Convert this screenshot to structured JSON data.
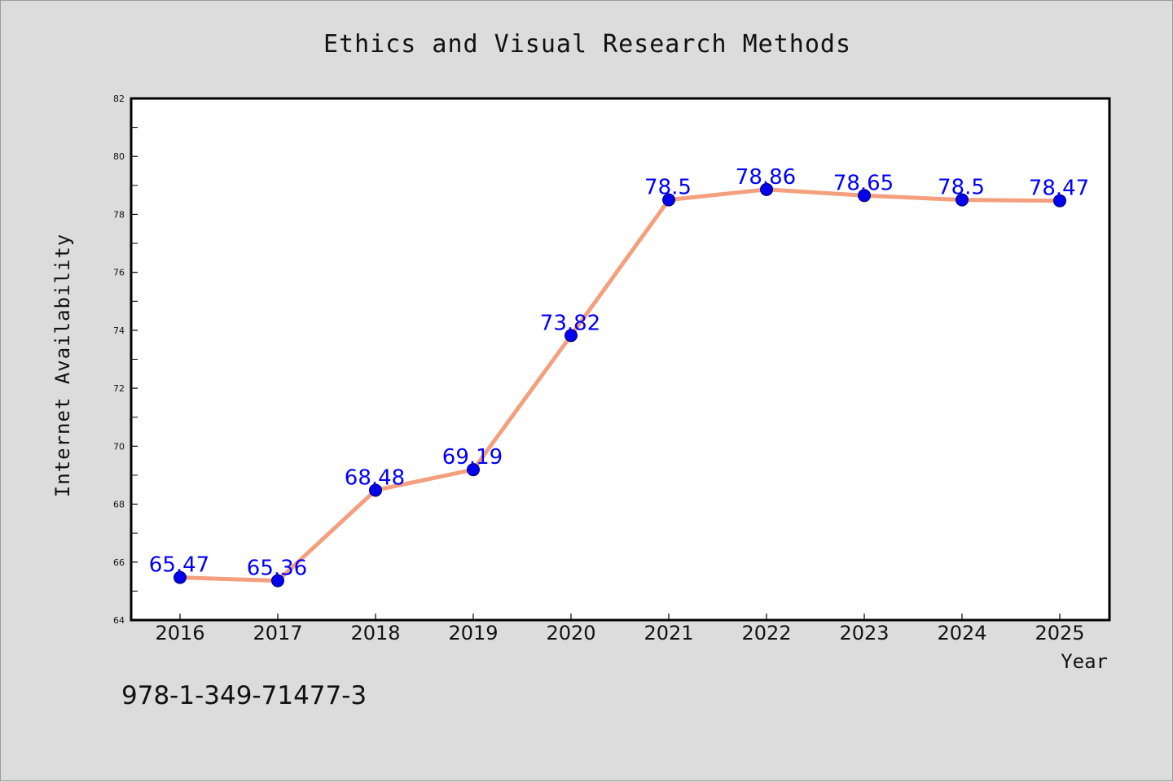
{
  "chart_data": {
    "type": "line",
    "title": "Ethics and Visual Research Methods",
    "xlabel": "Year",
    "ylabel": "Internet Availability",
    "categories": [
      "2016",
      "2017",
      "2018",
      "2019",
      "2020",
      "2021",
      "2022",
      "2023",
      "2024",
      "2025"
    ],
    "values": [
      65.47,
      65.36,
      68.48,
      69.19,
      73.82,
      78.5,
      78.86,
      78.65,
      78.5,
      78.47
    ],
    "data_labels": [
      "65.47",
      "65.36",
      "68.48",
      "69.19",
      "73.82",
      "78.5",
      "78.86",
      "78.65",
      "78.5",
      "78.47"
    ],
    "ylim": [
      64,
      82
    ],
    "yticks": [
      64,
      66,
      68,
      70,
      72,
      74,
      76,
      78,
      80,
      82
    ],
    "ytick_labels": [
      "64",
      "66",
      "68",
      "70",
      "72",
      "74",
      "76",
      "78",
      "80",
      "82"
    ],
    "grid": false,
    "line_color": "#f4a07e",
    "marker_color": "#0000ee",
    "label_color": "#0000ff",
    "background_color": "#dcdcdc",
    "plot_background_color": "#ffffff"
  },
  "footer": {
    "isbn": "978-1-349-71477-3"
  }
}
